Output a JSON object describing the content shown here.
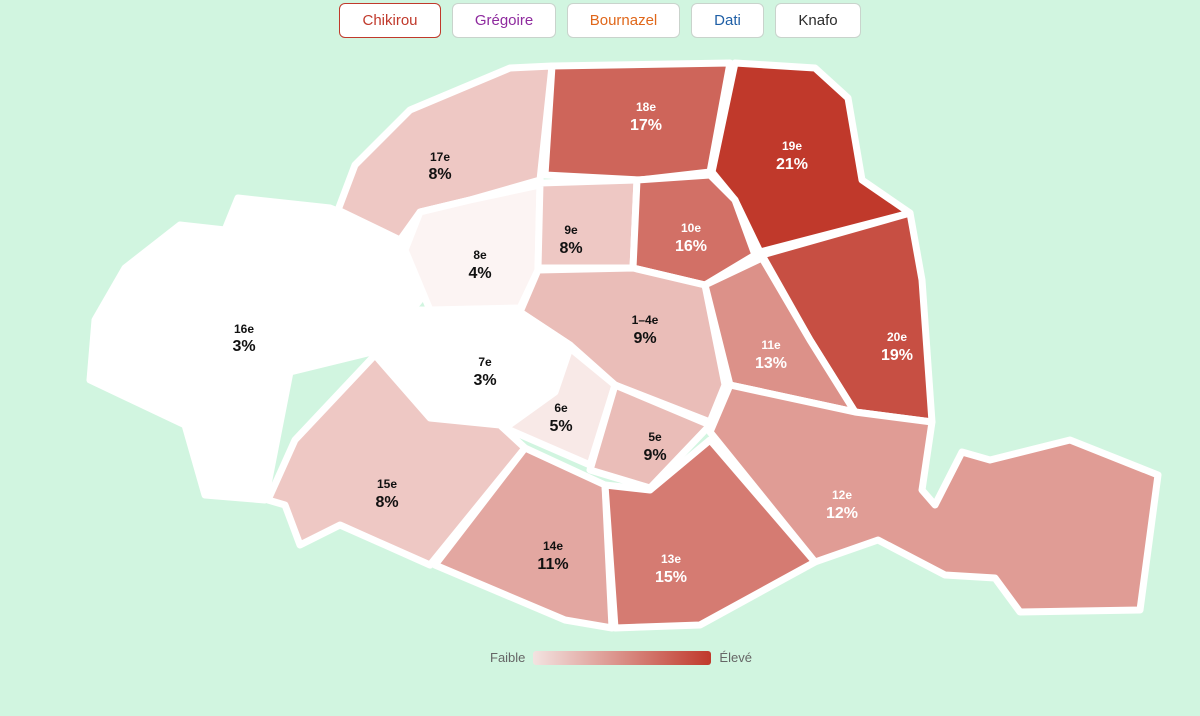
{
  "tabs": [
    {
      "label": "Chikirou",
      "color": "#c0392b",
      "active": true
    },
    {
      "label": "Grégoire",
      "color": "#8e2a9e",
      "active": false
    },
    {
      "label": "Bournazel",
      "color": "#e0671a",
      "active": false
    },
    {
      "label": "Dati",
      "color": "#1f5fa6",
      "active": false
    },
    {
      "label": "Knafo",
      "color": "#2b2b2b",
      "active": false
    }
  ],
  "map": {
    "scale_low_color": "#ffffff",
    "scale_high_color": "#c0392b",
    "arrondissements": [
      {
        "id": "16e",
        "name": "16e",
        "value": "3%",
        "pct": 3
      },
      {
        "id": "17e",
        "name": "17e",
        "value": "8%",
        "pct": 8
      },
      {
        "id": "18e",
        "name": "18e",
        "value": "17%",
        "pct": 17
      },
      {
        "id": "19e",
        "name": "19e",
        "value": "21%",
        "pct": 21
      },
      {
        "id": "8e",
        "name": "8e",
        "value": "4%",
        "pct": 4
      },
      {
        "id": "9e",
        "name": "9e",
        "value": "8%",
        "pct": 8
      },
      {
        "id": "10e",
        "name": "10e",
        "value": "16%",
        "pct": 16
      },
      {
        "id": "1-4e",
        "name": "1–4e",
        "value": "9%",
        "pct": 9
      },
      {
        "id": "20e",
        "name": "20e",
        "value": "19%",
        "pct": 19
      },
      {
        "id": "11e",
        "name": "11e",
        "value": "13%",
        "pct": 13
      },
      {
        "id": "7e",
        "name": "7e",
        "value": "3%",
        "pct": 3
      },
      {
        "id": "6e",
        "name": "6e",
        "value": "5%",
        "pct": 5
      },
      {
        "id": "5e",
        "name": "5e",
        "value": "9%",
        "pct": 9
      },
      {
        "id": "15e",
        "name": "15e",
        "value": "8%",
        "pct": 8
      },
      {
        "id": "14e",
        "name": "14e",
        "value": "11%",
        "pct": 11
      },
      {
        "id": "13e",
        "name": "13e",
        "value": "15%",
        "pct": 15
      },
      {
        "id": "12e",
        "name": "12e",
        "value": "12%",
        "pct": 12
      }
    ]
  },
  "legend": {
    "low": "Faible",
    "high": "Élevé"
  }
}
